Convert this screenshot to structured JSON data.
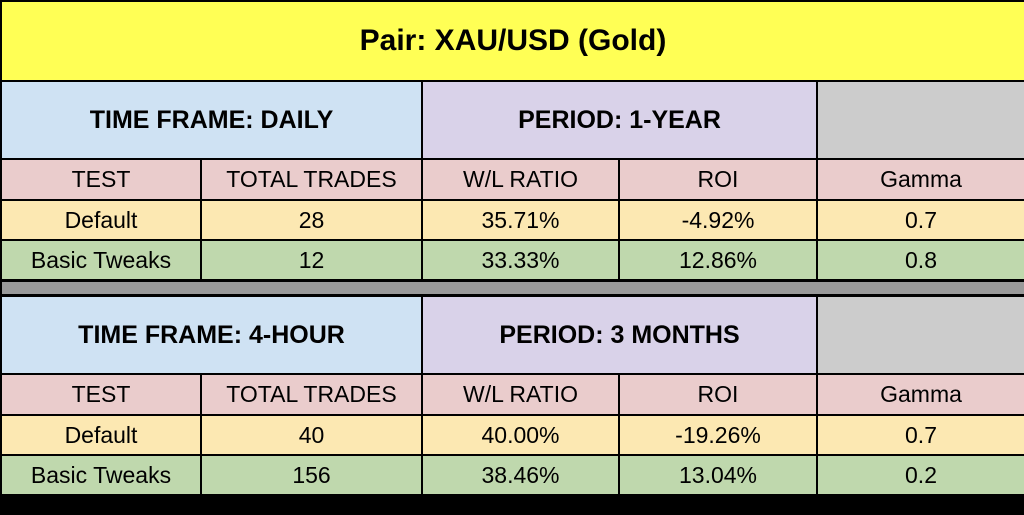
{
  "title": "Pair:  XAU/USD (Gold)",
  "columns": [
    "TEST",
    "TOTAL TRADES",
    "W/L RATIO",
    "ROI",
    "Gamma"
  ],
  "blocks": [
    {
      "time_frame": "TIME FRAME:  DAILY",
      "period": "PERIOD: 1-YEAR",
      "rows": [
        [
          "Default",
          "28",
          "35.71%",
          "-4.92%",
          "0.7"
        ],
        [
          "Basic Tweaks",
          "12",
          "33.33%",
          "12.86%",
          "0.8"
        ]
      ]
    },
    {
      "time_frame": "TIME FRAME:  4-HOUR",
      "period": "PERIOD: 3 MONTHS",
      "rows": [
        [
          "Default",
          "40",
          "40.00%",
          "-19.26%",
          "0.7"
        ],
        [
          "Basic Tweaks",
          "156",
          "38.46%",
          "13.04%",
          "0.2"
        ]
      ]
    }
  ],
  "colors": {
    "title": "#ffff55",
    "time_frame": "#cfe2f3",
    "period": "#d9d2e9",
    "blank": "#cccccc",
    "header": "#eacccc",
    "default_row": "#fce8b2",
    "tweaks_row": "#bfd8ad",
    "separator": "#999999"
  }
}
